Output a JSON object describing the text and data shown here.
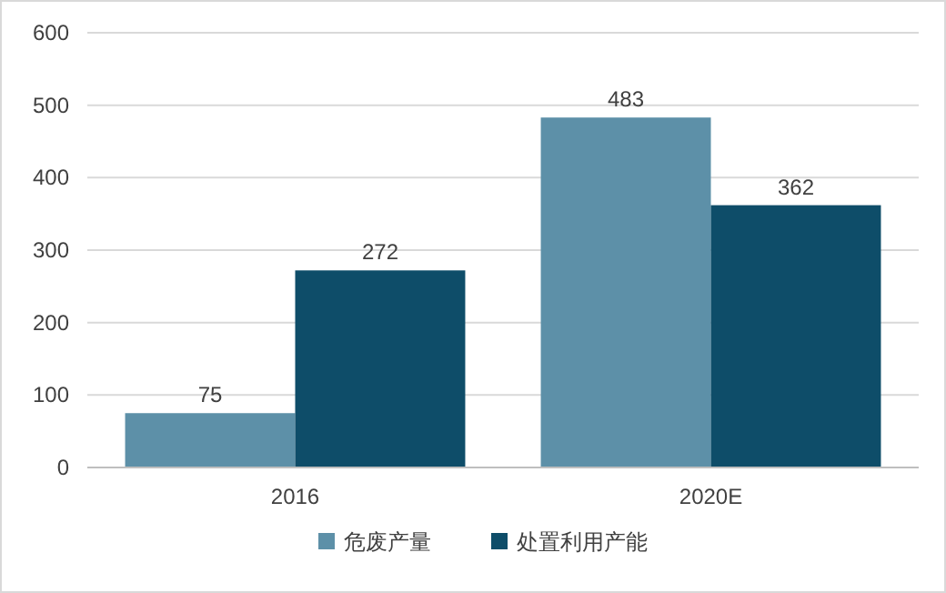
{
  "chart_data": {
    "type": "bar",
    "categories": [
      "2016",
      "2020E"
    ],
    "series": [
      {
        "name": "危废产量",
        "color": "#5d90a8",
        "values": [
          75,
          483
        ]
      },
      {
        "name": "处置利用产能",
        "color": "#0e4d69",
        "values": [
          272,
          362
        ]
      }
    ],
    "ylim": [
      0,
      600
    ],
    "yticks": [
      0,
      100,
      200,
      300,
      400,
      500,
      600
    ],
    "grid": "y",
    "legend": "bottom",
    "data_labels": true
  }
}
